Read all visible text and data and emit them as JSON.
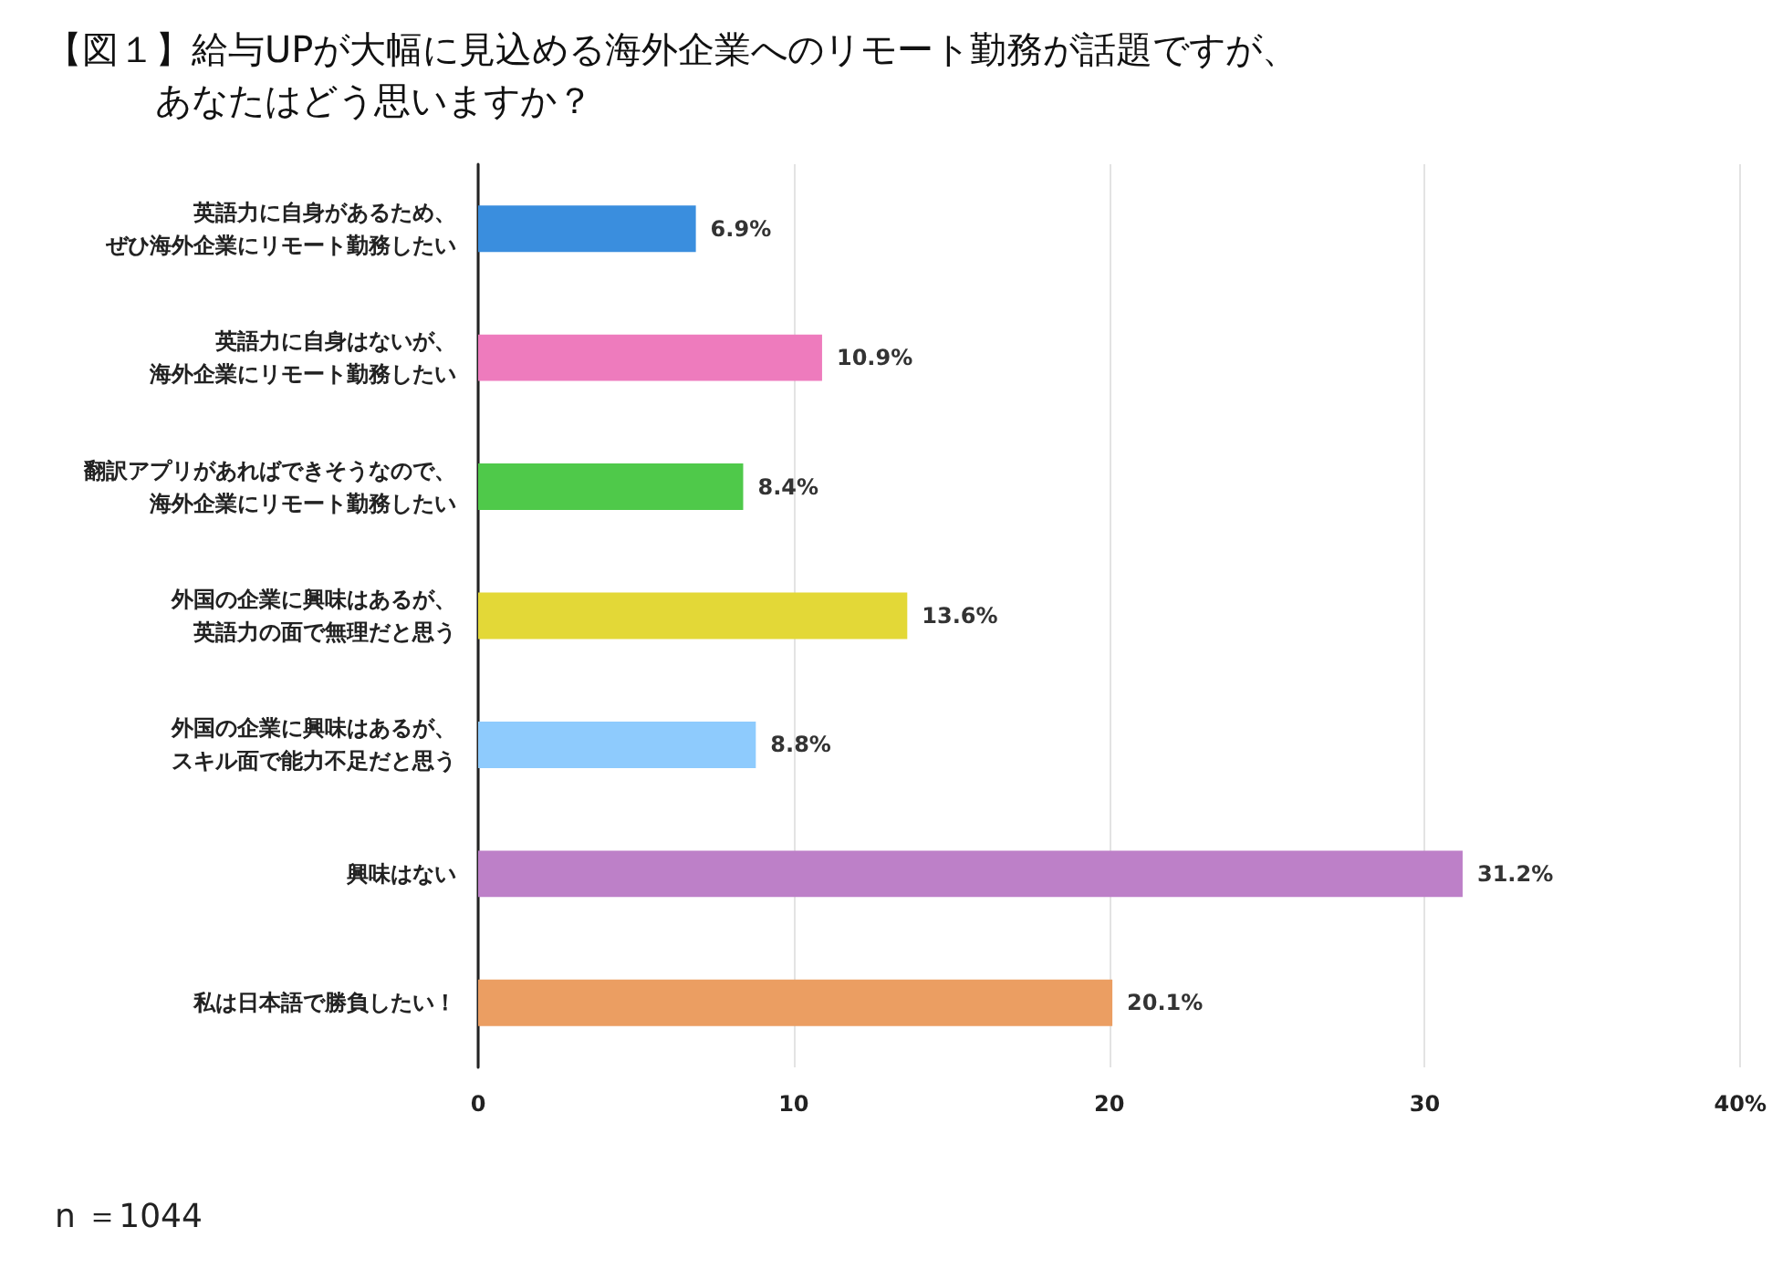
{
  "chart_data": {
    "type": "bar",
    "orientation": "horizontal",
    "title": "【図１】給与UPが大幅に見込める海外企業へのリモート勤務が話題ですが、あなたはどう思いますか？",
    "categories": [
      "英語力に自身があるため、ぜひ海外企業にリモート勤務したい",
      "英語力に自身はないが、海外企業にリモート勤務したい",
      "翻訳アプリがあればできそうなので、海外企業にリモート勤務したい",
      "外国の企業に興味はあるが、英語力の面で無理だと思う",
      "外国の企業に興味はあるが、スキル面で能力不足だと思う",
      "興味はない",
      "私は日本語で勝負したい！"
    ],
    "values": [
      6.9,
      10.9,
      8.4,
      13.6,
      8.8,
      31.2,
      20.1
    ],
    "value_labels": [
      "6.9%",
      "10.9%",
      "8.4%",
      "13.6%",
      "8.8%",
      "31.2%",
      "20.1%"
    ],
    "colors": [
      "#3a8ede",
      "#ee7bbd",
      "#4fc94a",
      "#e3d837",
      "#8ecbfd",
      "#bd80c8",
      "#eb9e62"
    ],
    "xlim": [
      0,
      40
    ],
    "xticks": [
      0,
      10,
      20,
      30,
      {
        "value": 40,
        "label": "40%"
      }
    ],
    "grid": "x",
    "annotations": [
      "n ＝1044"
    ]
  }
}
